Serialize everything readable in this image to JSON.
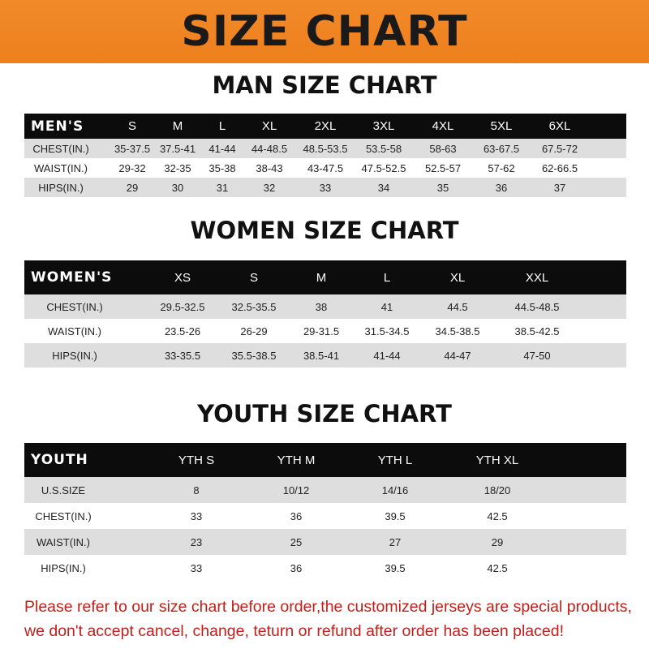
{
  "banner": {
    "title": "SIZE CHART",
    "color": "#f08524"
  },
  "men": {
    "title": "MAN SIZE CHART",
    "header": [
      "MEN'S",
      "S",
      "M",
      "L",
      "XL",
      "2XL",
      "3XL",
      "4XL",
      "5XL",
      "6XL"
    ],
    "rows": [
      [
        "CHEST(IN.)",
        "35-37.5",
        "37.5-41",
        "41-44",
        "44-48.5",
        "48.5-53.5",
        "53.5-58",
        "58-63",
        "63-67.5",
        "67.5-72"
      ],
      [
        "WAIST(IN.)",
        "29-32",
        "32-35",
        "35-38",
        "38-43",
        "43-47.5",
        "47.5-52.5",
        "52.5-57",
        "57-62",
        "62-66.5"
      ],
      [
        "HIPS(IN.)",
        "29",
        "30",
        "31",
        "32",
        "33",
        "34",
        "35",
        "36",
        "37"
      ]
    ]
  },
  "women": {
    "title": "WOMEN SIZE CHART",
    "header": [
      "WOMEN'S",
      "XS",
      "S",
      "M",
      "L",
      "XL",
      "XXL"
    ],
    "rows": [
      [
        "CHEST(IN.)",
        "29.5-32.5",
        "32.5-35.5",
        "38",
        "41",
        "44.5",
        "44.5-48.5"
      ],
      [
        "WAIST(IN.)",
        "23.5-26",
        "26-29",
        "29-31.5",
        "31.5-34.5",
        "34.5-38.5",
        "38.5-42.5"
      ],
      [
        "HIPS(IN.)",
        "33-35.5",
        "35.5-38.5",
        "38.5-41",
        "41-44",
        "44-47",
        "47-50"
      ]
    ]
  },
  "youth": {
    "title": "YOUTH SIZE CHART",
    "header": [
      "YOUTH",
      "YTH S",
      "YTH M",
      "YTH L",
      "YTH XL"
    ],
    "rows": [
      [
        "U.S.SIZE",
        "8",
        "10/12",
        "14/16",
        "18/20"
      ],
      [
        "CHEST(IN.)",
        "33",
        "36",
        "39.5",
        "42.5"
      ],
      [
        "WAIST(IN.)",
        "23",
        "25",
        "27",
        "29"
      ],
      [
        "HIPS(IN.)",
        "33",
        "36",
        "39.5",
        "42.5"
      ]
    ]
  },
  "notice": {
    "line1": "Please refer to our size chart before order,the customized jerseys are special products,",
    "line2": "we don't accept cancel, change, teturn or refund after order has been placed!",
    "color": "#c0201a"
  }
}
